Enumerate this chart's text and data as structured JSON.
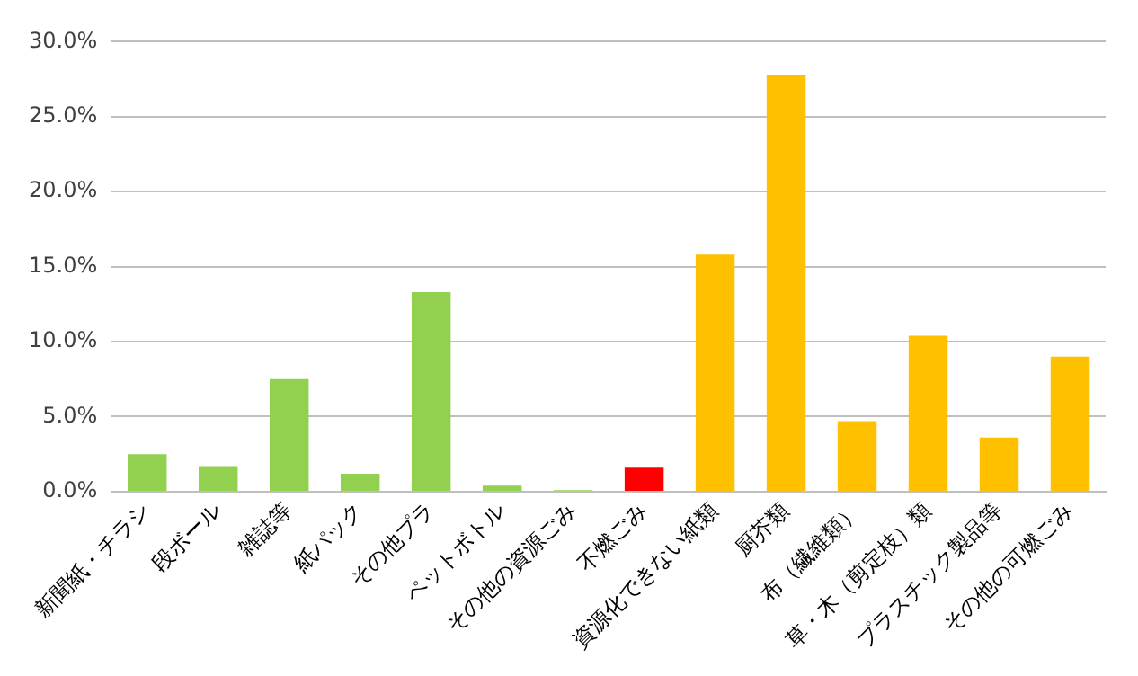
{
  "chart_data": {
    "type": "bar",
    "categories": [
      "新聞紙・チラシ",
      "段ボール",
      "雑誌等",
      "紙パック",
      "その他プラ",
      "ペットボトル",
      "その他の資源ごみ",
      "不燃ごみ",
      "資源化できない紙類",
      "厨芥類",
      "布（繊維類）",
      "草・木（剪定枝）類",
      "プラスチック製品等",
      "その他の可燃ごみ"
    ],
    "values": [
      2.5,
      1.7,
      7.5,
      1.2,
      13.3,
      0.4,
      0.1,
      1.6,
      15.8,
      27.8,
      4.7,
      10.4,
      3.6,
      9.0
    ],
    "colors": [
      "#92d050",
      "#92d050",
      "#92d050",
      "#92d050",
      "#92d050",
      "#92d050",
      "#92d050",
      "#ff0000",
      "#ffc000",
      "#ffc000",
      "#ffc000",
      "#ffc000",
      "#ffc000",
      "#ffc000"
    ],
    "ylim": [
      0,
      30
    ],
    "yticks": [
      {
        "value": 0,
        "label": "0.0%"
      },
      {
        "value": 5,
        "label": "5.0%"
      },
      {
        "value": 10,
        "label": "10.0%"
      },
      {
        "value": 15,
        "label": "15.0%"
      },
      {
        "value": 20,
        "label": "20.0%"
      },
      {
        "value": 25,
        "label": "25.0%"
      },
      {
        "value": 30,
        "label": "30.0%"
      }
    ],
    "grid": "y",
    "legend": false
  }
}
